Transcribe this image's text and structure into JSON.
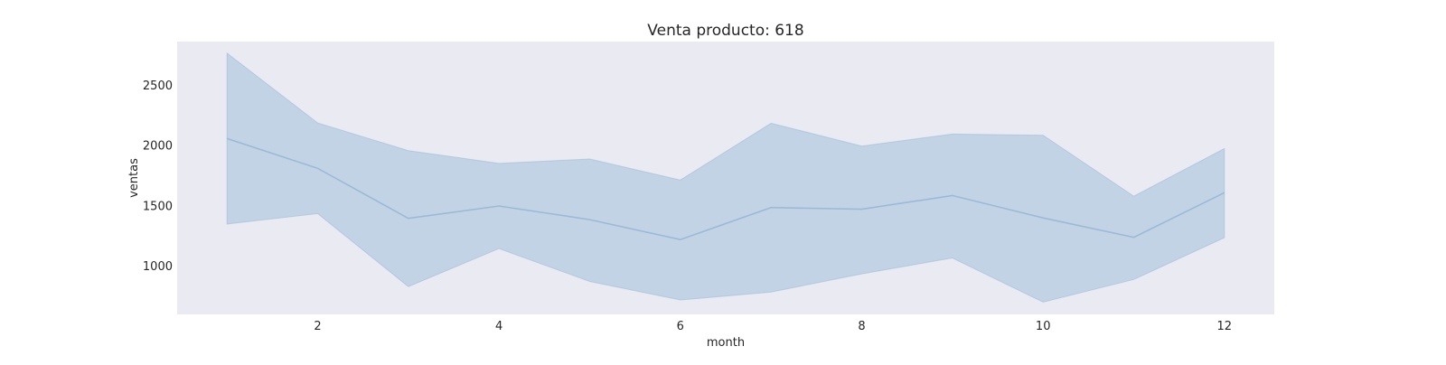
{
  "chart_data": {
    "type": "area",
    "title": "Venta producto: 618",
    "xlabel": "month",
    "ylabel": "ventas",
    "xlim": [
      0.45,
      12.55
    ],
    "ylim": [
      595,
      2860
    ],
    "xticks": [
      2,
      4,
      6,
      8,
      10,
      12
    ],
    "yticks": [
      1000,
      1500,
      2000,
      2500
    ],
    "grid": false,
    "colors": {
      "line": "#9bbad6",
      "band": "#c2d3e5",
      "background": "#eaeaf2"
    },
    "x": [
      1,
      2,
      3,
      4,
      5,
      6,
      7,
      8,
      9,
      10,
      11,
      12
    ],
    "series": [
      {
        "values": [
          2055,
          1808,
          1392,
          1495,
          1382,
          1216,
          1482,
          1468,
          1582,
          1396,
          1235,
          1605
        ],
        "lower": [
          1345,
          1432,
          826,
          1142,
          869,
          715,
          781,
          932,
          1064,
          697,
          885,
          1232
        ],
        "upper": [
          2764,
          2184,
          1955,
          1848,
          1885,
          1710,
          2182,
          1992,
          2092,
          2082,
          1576,
          1972
        ]
      }
    ]
  }
}
